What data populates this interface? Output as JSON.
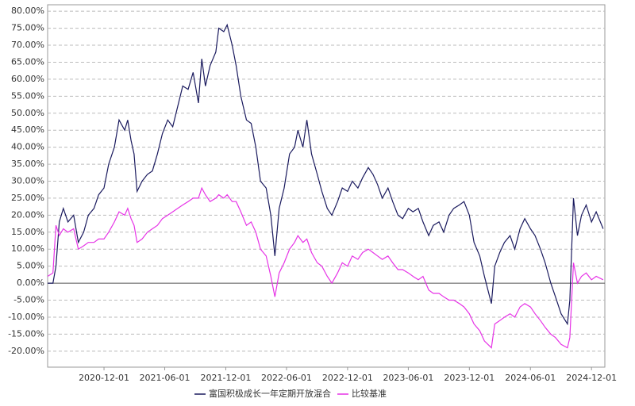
{
  "chart_data": {
    "type": "line",
    "x": [
      "2020-06-15",
      "2020-07-01",
      "2020-07-10",
      "2020-07-20",
      "2020-08-01",
      "2020-08-15",
      "2020-09-01",
      "2020-09-15",
      "2020-10-01",
      "2020-10-15",
      "2020-11-01",
      "2020-11-15",
      "2020-12-01",
      "2020-12-15",
      "2021-01-01",
      "2021-01-15",
      "2021-02-01",
      "2021-02-10",
      "2021-02-20",
      "2021-03-01",
      "2021-03-10",
      "2021-03-25",
      "2021-04-10",
      "2021-04-25",
      "2021-05-10",
      "2021-05-25",
      "2021-06-10",
      "2021-06-25",
      "2021-07-10",
      "2021-07-25",
      "2021-08-10",
      "2021-08-25",
      "2021-09-10",
      "2021-09-20",
      "2021-10-01",
      "2021-10-15",
      "2021-11-01",
      "2021-11-10",
      "2021-11-25",
      "2021-12-05",
      "2021-12-20",
      "2022-01-01",
      "2022-01-15",
      "2022-02-01",
      "2022-02-15",
      "2022-03-01",
      "2022-03-15",
      "2022-04-01",
      "2022-04-15",
      "2022-04-27",
      "2022-05-10",
      "2022-05-25",
      "2022-06-10",
      "2022-06-25",
      "2022-07-05",
      "2022-07-20",
      "2022-08-01",
      "2022-08-15",
      "2022-09-01",
      "2022-09-15",
      "2022-10-01",
      "2022-10-15",
      "2022-11-01",
      "2022-11-15",
      "2022-12-01",
      "2022-12-15",
      "2023-01-01",
      "2023-01-15",
      "2023-02-01",
      "2023-02-15",
      "2023-03-01",
      "2023-03-15",
      "2023-04-01",
      "2023-04-15",
      "2023-05-01",
      "2023-05-15",
      "2023-06-01",
      "2023-06-15",
      "2023-07-01",
      "2023-07-15",
      "2023-08-01",
      "2023-08-15",
      "2023-09-01",
      "2023-09-15",
      "2023-10-01",
      "2023-10-15",
      "2023-11-01",
      "2023-11-15",
      "2023-12-01",
      "2023-12-15",
      "2024-01-01",
      "2024-01-15",
      "2024-02-05",
      "2024-02-15",
      "2024-03-01",
      "2024-03-15",
      "2024-04-01",
      "2024-04-15",
      "2024-05-01",
      "2024-05-15",
      "2024-06-01",
      "2024-06-15",
      "2024-07-01",
      "2024-07-15",
      "2024-08-01",
      "2024-08-15",
      "2024-09-01",
      "2024-09-20",
      "2024-09-27",
      "2024-10-08",
      "2024-10-20",
      "2024-11-01",
      "2024-11-15",
      "2024-12-01",
      "2024-12-15",
      "2025-01-05"
    ],
    "series": [
      {
        "name": "富国积极成长一年定期开放混合",
        "color": "#1a1a5e",
        "values": [
          0,
          0,
          5,
          18,
          22,
          18,
          20,
          12,
          15,
          20,
          22,
          26,
          28,
          35,
          40,
          48,
          45,
          48,
          42,
          38,
          27,
          30,
          32,
          33,
          38,
          44,
          48,
          46,
          52,
          58,
          57,
          62,
          53,
          66,
          58,
          64,
          68,
          75,
          74,
          76,
          70,
          64,
          55,
          48,
          47,
          40,
          30,
          28,
          20,
          8,
          22,
          28,
          38,
          40,
          45,
          40,
          48,
          38,
          32,
          27,
          22,
          20,
          24,
          28,
          27,
          30,
          28,
          31,
          34,
          32,
          29,
          25,
          28,
          24,
          20,
          19,
          22,
          21,
          22,
          18,
          14,
          17,
          18,
          15,
          20,
          22,
          23,
          24,
          20,
          12,
          8,
          2,
          -6,
          5,
          9,
          12,
          14,
          10,
          16,
          19,
          16,
          14,
          10,
          6,
          0,
          -4,
          -9,
          -12,
          -5,
          25,
          14,
          20,
          23,
          18,
          21,
          16
        ]
      },
      {
        "name": "比较基准",
        "color": "#e633e6",
        "values": [
          2,
          3,
          17,
          14,
          16,
          15,
          16,
          10,
          11,
          12,
          12,
          13,
          13,
          15,
          18,
          21,
          20,
          22,
          19,
          17,
          12,
          13,
          15,
          16,
          17,
          19,
          20,
          21,
          22,
          23,
          24,
          25,
          25,
          28,
          26,
          24,
          25,
          26,
          25,
          26,
          24,
          24,
          21,
          17,
          18,
          15,
          10,
          8,
          2,
          -4,
          3,
          6,
          10,
          12,
          14,
          12,
          13,
          9,
          6,
          5,
          2,
          0,
          3,
          6,
          5,
          8,
          7,
          9,
          10,
          9,
          8,
          7,
          8,
          6,
          4,
          4,
          3,
          2,
          1,
          2,
          -2,
          -3,
          -3,
          -4,
          -5,
          -5,
          -6,
          -7,
          -9,
          -12,
          -14,
          -17,
          -19,
          -12,
          -11,
          -10,
          -9,
          -10,
          -7,
          -6,
          -7,
          -9,
          -11,
          -13,
          -15,
          -16,
          -18,
          -19,
          -16,
          6,
          0,
          2,
          3,
          1,
          2,
          1
        ]
      }
    ],
    "xlim": [
      "2020-06-15",
      "2025-01-10"
    ],
    "xticks": [
      "2020-12-01",
      "2021-06-01",
      "2021-12-01",
      "2022-06-01",
      "2022-12-01",
      "2023-06-01",
      "2023-12-01",
      "2024-06-01",
      "2024-12-01"
    ],
    "ylim": [
      -24.7,
      81.9
    ],
    "yticks": [
      {
        "value": 80,
        "label": "80.00%"
      },
      {
        "value": 75,
        "label": "75.00%"
      },
      {
        "value": 70,
        "label": "70.00%"
      },
      {
        "value": 65,
        "label": "65.00%"
      },
      {
        "value": 60,
        "label": "60.00%"
      },
      {
        "value": 55,
        "label": "55.00%"
      },
      {
        "value": 50,
        "label": "50.00%"
      },
      {
        "value": 45,
        "label": "45.00%"
      },
      {
        "value": 40,
        "label": "40.00%"
      },
      {
        "value": 35,
        "label": "35.00%"
      },
      {
        "value": 30,
        "label": "30.00%"
      },
      {
        "value": 25,
        "label": "25.00%"
      },
      {
        "value": 20,
        "label": "20.00%"
      },
      {
        "value": 15,
        "label": "15.00%"
      },
      {
        "value": 10,
        "label": "10.00%"
      },
      {
        "value": 5,
        "label": "5.00%"
      },
      {
        "value": 0,
        "label": "0.00%"
      },
      {
        "value": -5,
        "label": "-5.00%"
      },
      {
        "value": -10,
        "label": "-10.00%"
      },
      {
        "value": -15,
        "label": "-15.00%"
      },
      {
        "value": -20,
        "label": "-20.00%"
      }
    ],
    "grid": true,
    "legend": "bottom"
  }
}
